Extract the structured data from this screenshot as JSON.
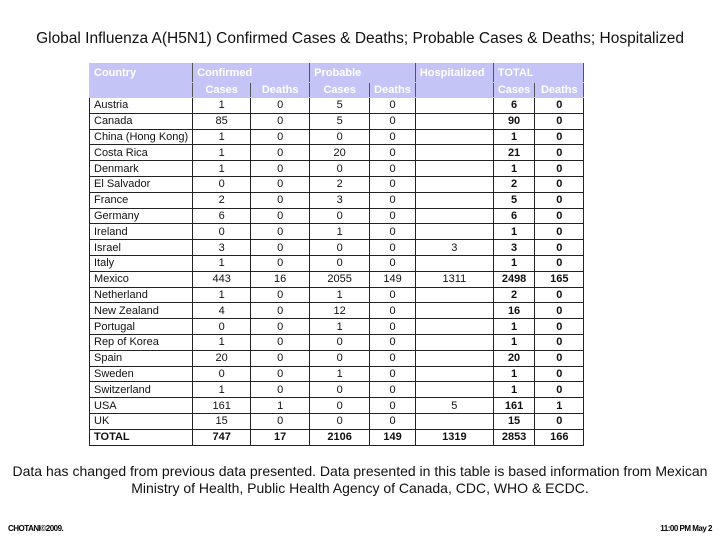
{
  "title": "Global Influenza A(H5N1) Confirmed Cases & Deaths; Probable Cases & Deaths; Hospitalized",
  "header": {
    "country": "Country",
    "confirmed": "Confirmed",
    "probable": "Probable",
    "hospitalized": "Hospitalized",
    "total": "TOTAL",
    "cases": "Cases",
    "deaths": "Deaths"
  },
  "header_color": "#c4c4f6",
  "rows": [
    [
      "Austria",
      "1",
      "0",
      "5",
      "0",
      "",
      "6",
      "0"
    ],
    [
      "Canada",
      "85",
      "0",
      "5",
      "0",
      "",
      "90",
      "0"
    ],
    [
      "China (Hong Kong)",
      "1",
      "0",
      "0",
      "0",
      "",
      "1",
      "0"
    ],
    [
      "Costa Rica",
      "1",
      "0",
      "20",
      "0",
      "",
      "21",
      "0"
    ],
    [
      "Denmark",
      "1",
      "0",
      "0",
      "0",
      "",
      "1",
      "0"
    ],
    [
      "El Salvador",
      "0",
      "0",
      "2",
      "0",
      "",
      "2",
      "0"
    ],
    [
      "France",
      "2",
      "0",
      "3",
      "0",
      "",
      "5",
      "0"
    ],
    [
      "Germany",
      "6",
      "0",
      "0",
      "0",
      "",
      "6",
      "0"
    ],
    [
      "Ireland",
      "0",
      "0",
      "1",
      "0",
      "",
      "1",
      "0"
    ],
    [
      "Israel",
      "3",
      "0",
      "0",
      "0",
      "3",
      "3",
      "0"
    ],
    [
      "Italy",
      "1",
      "0",
      "0",
      "0",
      "",
      "1",
      "0"
    ],
    [
      "Mexico",
      "443",
      "16",
      "2055",
      "149",
      "1311",
      "2498",
      "165"
    ],
    [
      "Netherland",
      "1",
      "0",
      "1",
      "0",
      "",
      "2",
      "0"
    ],
    [
      "New Zealand",
      "4",
      "0",
      "12",
      "0",
      "",
      "16",
      "0"
    ],
    [
      "Portugal",
      "0",
      "0",
      "1",
      "0",
      "",
      "1",
      "0"
    ],
    [
      "Rep of Korea",
      "1",
      "0",
      "0",
      "0",
      "",
      "1",
      "0"
    ],
    [
      "Spain",
      "20",
      "0",
      "0",
      "0",
      "",
      "20",
      "0"
    ],
    [
      "Sweden",
      "0",
      "0",
      "1",
      "0",
      "",
      "1",
      "0"
    ],
    [
      "Switzerland",
      "1",
      "0",
      "0",
      "0",
      "",
      "1",
      "0"
    ],
    [
      "USA",
      "161",
      "1",
      "0",
      "0",
      "5",
      "161",
      "1"
    ],
    [
      "UK",
      "15",
      "0",
      "0",
      "0",
      "",
      "15",
      "0"
    ]
  ],
  "total": [
    "TOTAL",
    "747",
    "17",
    "2106",
    "149",
    "1319",
    "2853",
    "166"
  ],
  "note": "Data has changed from previous data presented. Data presented in this table is based information from Mexican Ministry of Health, Public Health Agency of Canada, CDC, WHO & ECDC.",
  "footer_left": "CHOTANI©2009.",
  "footer_right": "11:00 PM May 2"
}
